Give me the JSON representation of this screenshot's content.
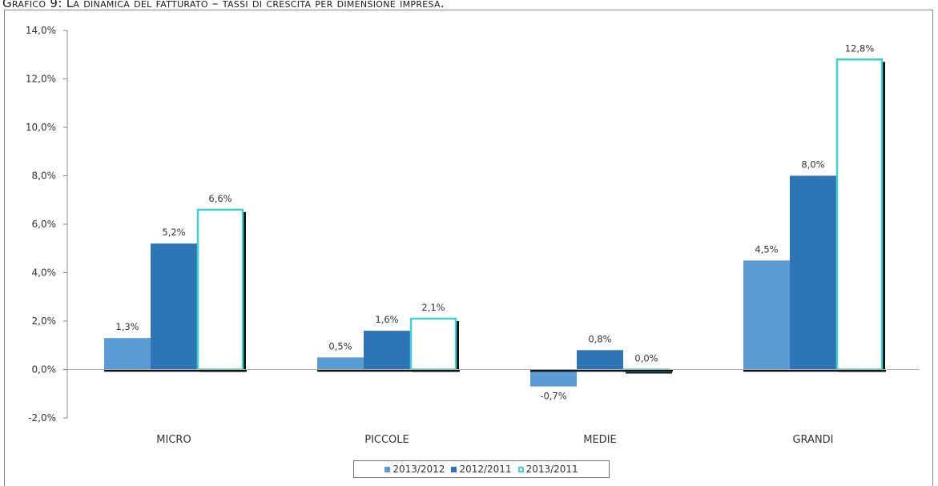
{
  "caption": "Grafico 9: La dinamica del fatturato – tassi di crescita per dimensione impresa.",
  "colors": {
    "s1": "#5b9bd5",
    "s2": "#2e75b6",
    "s3_border": "#3fd0d0",
    "s3_fill": "#ffffff"
  },
  "chart_data": {
    "type": "bar",
    "categories": [
      "MICRO",
      "PICCOLE",
      "MEDIE",
      "GRANDI"
    ],
    "series": [
      {
        "name": "2013/2012",
        "values": [
          1.3,
          0.5,
          -0.7,
          4.5
        ],
        "labels": [
          "1,3%",
          "0,5%",
          "-0,7%",
          "4,5%"
        ]
      },
      {
        "name": "2012/2011",
        "values": [
          5.2,
          1.6,
          0.8,
          8.0
        ],
        "labels": [
          "5,2%",
          "1,6%",
          "0,8%",
          "8,0%"
        ]
      },
      {
        "name": "2013/2011",
        "values": [
          6.6,
          2.1,
          0.0,
          12.8
        ],
        "labels": [
          "6,6%",
          "2,1%",
          "0,0%",
          "12,8%"
        ]
      }
    ],
    "ylim": [
      -2,
      14
    ],
    "yticks": [
      14,
      12,
      10,
      8,
      6,
      4,
      2,
      0,
      -2
    ],
    "ytick_labels": [
      "14,0%",
      "12,0%",
      "10,0%",
      "8,0%",
      "6,0%",
      "4,0%",
      "2,0%",
      "0,0%",
      "-2,0%"
    ],
    "legend_position": "bottom",
    "grid": false
  }
}
